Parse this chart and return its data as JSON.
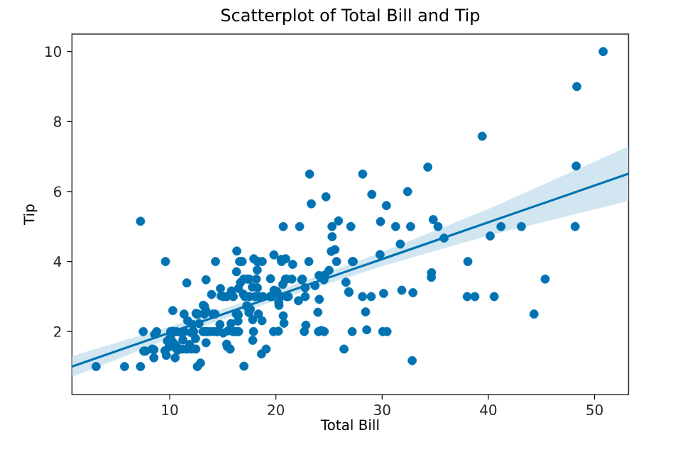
{
  "chart_data": {
    "type": "scatter",
    "title": "Scatterplot of Total Bill and Tip",
    "xlabel": "Total Bill",
    "ylabel": "Tip",
    "xlim": [
      0.8,
      53.2
    ],
    "ylim": [
      0.2,
      10.5
    ],
    "xticks": [
      10,
      20,
      30,
      40,
      50
    ],
    "yticks": [
      2,
      4,
      6,
      8,
      10
    ],
    "grid": false,
    "series": [
      {
        "color": "#0173b2",
        "x": [
          50.81,
          48.27,
          48.17,
          48.33,
          39.42,
          3.07,
          5.75,
          7.25,
          7.25,
          9.6,
          34.81,
          34.65,
          34.63,
          35.26,
          35.83,
          38.07,
          38.01,
          38.73,
          40.17,
          40.55,
          41.19,
          43.11,
          44.3,
          45.35,
          32.83,
          32.68,
          32.4,
          34.3,
          31.85,
          31.71,
          31.27,
          32.9,
          30.46,
          30.14,
          30.06,
          30.4,
          29.85,
          29.8,
          29.03,
          28.97,
          28.55,
          28.44,
          28.17,
          28.15,
          27.28,
          27.2,
          27.18,
          27.05,
          26.88,
          26.86,
          26.59,
          26.41,
          25.89,
          25.71,
          25.56,
          25.29,
          25.28,
          25.21,
          25.0,
          24.71,
          24.59,
          24.55,
          24.52,
          24.27,
          24.08,
          24.06,
          24.01,
          23.95,
          23.68,
          23.33,
          23.17,
          23.1,
          22.82,
          22.76,
          22.75,
          22.67,
          22.49,
          22.42,
          22.23,
          22.12,
          21.58,
          21.5,
          21.16,
          21.01,
          21.01,
          20.92,
          20.9,
          20.76,
          20.69,
          20.69,
          20.65,
          20.53,
          20.49,
          20.45,
          20.29,
          20.27,
          20.23,
          20.08,
          19.82,
          19.81,
          19.77,
          19.65,
          19.49,
          19.44,
          19.08,
          18.78,
          18.71,
          18.69,
          18.64,
          18.43,
          18.35,
          18.29,
          18.28,
          18.26,
          18.24,
          18.15,
          18.04,
          17.92,
          17.89,
          17.82,
          17.81,
          17.78,
          17.59,
          17.51,
          17.47,
          17.46,
          17.31,
          17.29,
          17.26,
          17.07,
          16.99,
          16.97,
          16.93,
          16.82,
          16.66,
          16.58,
          16.49,
          16.47,
          16.45,
          16.43,
          16.4,
          16.32,
          16.31,
          16.29,
          16.27,
          16.21,
          15.98,
          15.95,
          15.81,
          15.77,
          15.69,
          15.48,
          15.42,
          15.38,
          15.36,
          15.06,
          15.04,
          14.83,
          14.78,
          14.73,
          14.52,
          14.48,
          14.31,
          14.26,
          14.15,
          14.07,
          13.94,
          13.81,
          13.51,
          13.42,
          13.42,
          13.39,
          13.37,
          13.28,
          13.27,
          13.16,
          13.13,
          12.9,
          12.76,
          12.66,
          12.6,
          12.54,
          12.48,
          12.46,
          12.43,
          12.26,
          12.16,
          12.03,
          12.02,
          11.87,
          11.69,
          11.61,
          11.59,
          11.38,
          11.35,
          11.24,
          11.17,
          11.02,
          10.77,
          10.65,
          10.63,
          10.59,
          10.51,
          10.34,
          10.33,
          10.29,
          10.27,
          10.09,
          10.07,
          9.94,
          9.78,
          9.68,
          9.55,
          8.77,
          8.58,
          8.52,
          8.51,
          8.35,
          7.74,
          7.56,
          7.51
        ],
        "values": [
          10,
          6.73,
          5,
          9,
          7.58,
          1,
          1,
          1,
          5.15,
          4,
          5.2,
          3.68,
          3.55,
          5,
          4.67,
          4,
          3,
          3,
          4.73,
          3,
          5,
          5,
          2.5,
          3.5,
          1.17,
          5,
          6,
          6.7,
          3.18,
          4.5,
          5,
          3.11,
          2,
          3.09,
          2,
          5.6,
          5.14,
          4.2,
          5.92,
          3,
          2.05,
          2.56,
          6.5,
          3,
          4,
          4,
          2,
          5,
          3.12,
          3.14,
          3.41,
          1.5,
          5.16,
          4,
          4.34,
          4.71,
          5,
          4.29,
          3.75,
          5.85,
          3.61,
          2,
          3.48,
          2.03,
          2.92,
          3.6,
          2,
          2.55,
          3.31,
          5.65,
          6.5,
          4,
          2.18,
          3,
          3.25,
          2,
          3.5,
          3.48,
          5,
          2.88,
          3.92,
          3.5,
          3,
          3.5,
          3,
          4.08,
          3.5,
          2.24,
          5,
          2.45,
          3.35,
          4,
          4.06,
          3,
          2.75,
          2.83,
          2.01,
          3.15,
          3.18,
          4.19,
          2,
          3,
          3.51,
          3,
          1.5,
          3,
          4,
          2.31,
          1.36,
          3,
          2.5,
          4,
          4,
          3.25,
          3.76,
          3.5,
          3,
          4.08,
          2,
          1.75,
          2.34,
          3.27,
          2.64,
          3,
          3.5,
          2.54,
          3.5,
          2.71,
          2.74,
          3,
          1.01,
          3.5,
          3.07,
          4,
          3.4,
          4,
          2,
          3.23,
          2.47,
          2.3,
          2.5,
          4.3,
          2,
          3.71,
          2.5,
          2,
          3,
          2,
          3.16,
          2.23,
          1.5,
          2.02,
          1.57,
          3,
          1.64,
          3,
          1.96,
          3.02,
          3.23,
          2.2,
          2,
          2,
          4,
          2.5,
          2,
          2.5,
          3.06,
          2,
          2,
          3.48,
          1.68,
          2.61,
          2,
          2.72,
          2.5,
          2.75,
          2,
          1.1,
          2.23,
          2.5,
          1,
          2.5,
          2.52,
          1.5,
          1.8,
          2,
          2.2,
          1.5,
          1.97,
          1.63,
          2.31,
          3.39,
          1.5,
          2,
          2.5,
          1.76,
          1.5,
          1.98,
          1.47,
          1.5,
          2,
          1.61,
          1.25,
          2,
          2,
          2.6,
          1.71,
          2,
          1.83,
          1.56,
          1.73,
          1.32,
          1.45,
          2,
          1.92,
          1.48,
          1.25,
          1.5,
          1.44,
          1.44,
          2
        ]
      },
      {
        "type": "line",
        "color": "#0173b2",
        "x": [
          0.8,
          10,
          20,
          30,
          40,
          53.2
        ],
        "values": [
          1.0,
          1.97,
          3.02,
          4.07,
          5.12,
          6.51
        ],
        "lower": [
          0.7,
          1.8,
          2.89,
          3.87,
          4.74,
          5.73
        ],
        "upper": [
          1.3,
          2.14,
          3.15,
          4.27,
          5.5,
          7.29
        ]
      }
    ]
  }
}
